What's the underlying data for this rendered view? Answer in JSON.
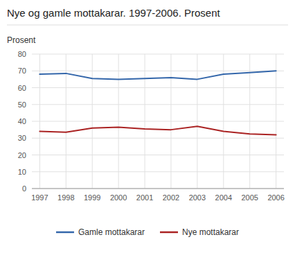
{
  "chart_data": {
    "type": "line",
    "title": "Nye og gamle mottakarar. 1997-2006. Prosent",
    "y_label": "Prosent",
    "x": [
      1997,
      1998,
      1999,
      2000,
      2001,
      2002,
      2003,
      2004,
      2005,
      2006
    ],
    "series": [
      {
        "name": "Gamle mottakarar",
        "color": "#3366aa",
        "values": [
          68.0,
          68.5,
          65.5,
          65.0,
          65.5,
          66.0,
          65.0,
          68.0,
          69.0,
          70.0
        ]
      },
      {
        "name": "Nye mottakarar",
        "color": "#aa2222",
        "values": [
          34.0,
          33.5,
          36.0,
          36.5,
          35.5,
          35.0,
          37.0,
          34.0,
          32.5,
          32.0
        ]
      }
    ],
    "xlim": [
      1996.7,
      2006.3
    ],
    "xticks": [
      1997,
      1998,
      1999,
      2000,
      2001,
      2002,
      2003,
      2004,
      2005,
      2006
    ],
    "ylim": [
      0,
      80
    ],
    "yticks": [
      0,
      10,
      20,
      30,
      40,
      50,
      60,
      70,
      80
    ],
    "grid": true,
    "legend": "bottom"
  }
}
